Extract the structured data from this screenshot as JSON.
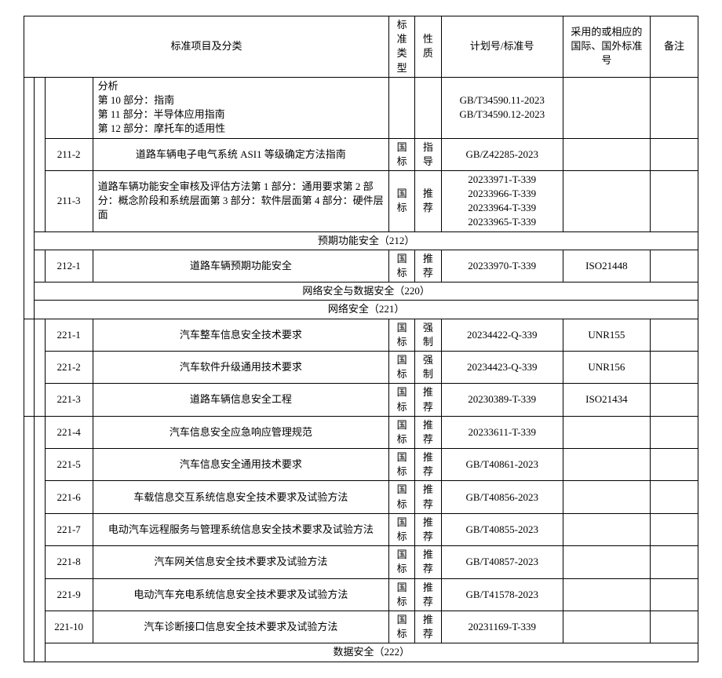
{
  "headers": {
    "item": "标准项目及分类",
    "type": "标准类型",
    "nature": "性质",
    "plan": "计划号/标准号",
    "intl": "采用的或相应的国际、国外标准号",
    "remark": "备注"
  },
  "row_cont": {
    "item": "分析\n第 10 部分：指南\n第 11 部分：半导体应用指南\n第 12 部分：摩托车的适用性",
    "plan": "GB/T34590.11-2023\nGB/T34590.12-2023"
  },
  "row_211_2": {
    "code": "211-2",
    "item": "道路车辆电子电气系统 ASI1 等级确定方法指南",
    "type": "国标",
    "nature": "指导",
    "plan": "GB/Z42285-2023"
  },
  "row_211_3": {
    "code": "211-3",
    "item": "道路车辆功能安全审核及评估方法第 1 部分：通用要求第 2 部分：概念阶段和系统层面第 3 部分：软件层面第 4 部分：硬件层面",
    "type": "国标",
    "nature": "推荐",
    "plan": "20233971-T-339\n20233966-T-339\n20233964-T-339\n20233965-T-339"
  },
  "sec_212": "预期功能安全（212）",
  "row_212_1": {
    "code": "212-1",
    "item": "道路车辆预期功能安全",
    "type": "国标",
    "nature": "推荐",
    "plan": "20233970-T-339",
    "intl": "ISO21448"
  },
  "sec_220": "网络安全与数据安全（220）",
  "sec_221": "网络安全（221）",
  "row_221_1": {
    "code": "221-1",
    "item": "汽车整车信息安全技术要求",
    "type": "国标",
    "nature": "强制",
    "plan": "20234422-Q-339",
    "intl": "UNR155"
  },
  "row_221_2": {
    "code": "221-2",
    "item": "汽车软件升级通用技术要求",
    "type": "国标",
    "nature": "强制",
    "plan": "20234423-Q-339",
    "intl": "UNR156"
  },
  "row_221_3": {
    "code": "221-3",
    "item": "道路车辆信息安全工程",
    "type": "国标",
    "nature": "推荐",
    "plan": "20230389-T-339",
    "intl": "ISO21434"
  },
  "row_221_4": {
    "code": "221-4",
    "item": "汽车信息安全应急响应管理规范",
    "type": "国标",
    "nature": "推荐",
    "plan": "20233611-T-339"
  },
  "row_221_5": {
    "code": "221-5",
    "item": "汽车信息安全通用技术要求",
    "type": "国标",
    "nature": "推荐",
    "plan": "GB/T40861-2023"
  },
  "row_221_6": {
    "code": "221-6",
    "item": "车载信息交互系统信息安全技术要求及试验方法",
    "type": "国标",
    "nature": "推荐",
    "plan": "GB/T40856-2023"
  },
  "row_221_7": {
    "code": "221-7",
    "item": "电动汽车远程服务与管理系统信息安全技术要求及试验方法",
    "type": "国标",
    "nature": "推荐",
    "plan": "GB/T40855-2023"
  },
  "row_221_8": {
    "code": "221-8",
    "item": "汽车网关信息安全技术要求及试验方法",
    "type": "国标",
    "nature": "推荐",
    "plan": "GB/T40857-2023"
  },
  "row_221_9": {
    "code": "221-9",
    "item": "电动汽车充电系统信息安全技术要求及试验方法",
    "type": "国标",
    "nature": "推荐",
    "plan": "GB/T41578-2023"
  },
  "row_221_10": {
    "code": "221-10",
    "item": "汽车诊断接口信息安全技术要求及试验方法",
    "type": "国标",
    "nature": "推荐",
    "plan": "20231169-T-339"
  },
  "sec_222": "数据安全（222）"
}
